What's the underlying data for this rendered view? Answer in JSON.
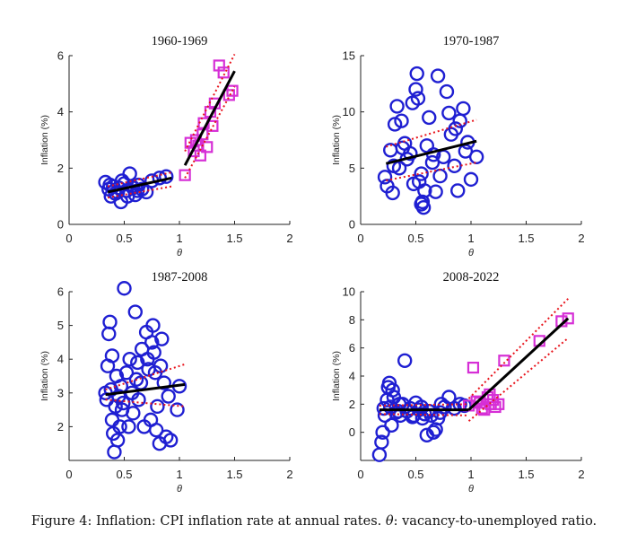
{
  "caption": {
    "prefix": "Figure 4: Inflation: CPI inflation rate at annual rates.",
    "theta": "θ",
    "suffix": ": vacancy-to-unemployed ratio."
  },
  "colors": {
    "circles": "#1f1fd2",
    "squares": "#d62fd6",
    "fit": "#000000",
    "band": "#e8141c"
  },
  "chart_data": [
    {
      "type": "scatter",
      "title": "1960-1969",
      "xlabel": "θ",
      "ylabel": "Inflation (%)",
      "xlim": [
        0,
        2
      ],
      "ylim": [
        0,
        6
      ],
      "xticks": [
        0,
        0.5,
        1,
        1.5,
        2
      ],
      "xtick_labels": [
        "0",
        "0.5",
        "1",
        "1.5",
        "2"
      ],
      "yticks": [
        0,
        2,
        4,
        6
      ],
      "ytick_labels": [
        "0",
        "2",
        "4",
        "6"
      ],
      "series": [
        {
          "marker": "circle",
          "x": [
            0.33,
            0.36,
            0.38,
            0.4,
            0.42,
            0.45,
            0.47,
            0.5,
            0.52,
            0.55,
            0.57,
            0.6,
            0.63,
            0.66,
            0.7,
            0.75,
            0.82,
            0.88,
            0.37,
            0.44,
            0.53,
            0.62,
            0.48,
            0.58
          ],
          "y": [
            1.5,
            1.25,
            1.0,
            1.35,
            1.1,
            1.3,
            0.8,
            1.45,
            1.2,
            1.8,
            1.35,
            1.05,
            1.4,
            1.25,
            1.15,
            1.55,
            1.65,
            1.7,
            1.4,
            1.15,
            1.0,
            1.2,
            1.55,
            1.3
          ]
        },
        {
          "marker": "square",
          "x": [
            1.05,
            1.1,
            1.13,
            1.15,
            1.17,
            1.19,
            1.22,
            1.25,
            1.28,
            1.32,
            1.36,
            1.4,
            1.45,
            1.48,
            1.21,
            1.3
          ],
          "y": [
            1.75,
            2.9,
            2.6,
            3.0,
            2.8,
            2.45,
            3.6,
            2.75,
            4.0,
            4.3,
            5.65,
            5.4,
            4.6,
            4.75,
            3.2,
            3.5
          ]
        }
      ],
      "fit_segments": [
        {
          "x": [
            0.35,
            0.93
          ],
          "y": [
            1.15,
            1.65
          ]
        },
        {
          "x": [
            1.05,
            1.5
          ],
          "y": [
            2.1,
            5.45
          ]
        }
      ],
      "band_segments": [
        {
          "x": [
            0.35,
            0.93
          ],
          "y_upper": [
            1.35,
            1.85
          ],
          "y_lower": [
            0.95,
            1.35
          ]
        },
        {
          "x": [
            1.05,
            1.5
          ],
          "y_upper": [
            2.6,
            6.05
          ],
          "y_lower": [
            1.65,
            4.9
          ]
        }
      ]
    },
    {
      "type": "scatter",
      "title": "1970-1987",
      "xlabel": "θ",
      "ylabel": "Inflation (%)",
      "xlim": [
        0,
        2
      ],
      "ylim": [
        0,
        15
      ],
      "xticks": [
        0,
        0.5,
        1,
        1.5,
        2
      ],
      "xtick_labels": [
        "0",
        "0.5",
        "1",
        "1.5",
        "2"
      ],
      "yticks": [
        0,
        5,
        10,
        15
      ],
      "ytick_labels": [
        "0",
        "5",
        "10",
        "15"
      ],
      "series": [
        {
          "marker": "circle",
          "x": [
            0.22,
            0.24,
            0.27,
            0.29,
            0.31,
            0.33,
            0.35,
            0.37,
            0.4,
            0.42,
            0.45,
            0.47,
            0.5,
            0.51,
            0.52,
            0.53,
            0.55,
            0.56,
            0.57,
            0.58,
            0.6,
            0.62,
            0.65,
            0.68,
            0.7,
            0.72,
            0.75,
            0.78,
            0.8,
            0.82,
            0.85,
            0.88,
            0.9,
            0.93,
            0.95,
            0.97,
            1.0,
            1.05,
            0.3,
            0.38,
            0.48,
            0.66,
            0.86,
            0.55
          ],
          "y": [
            4.2,
            3.4,
            6.6,
            2.8,
            8.9,
            10.5,
            5.0,
            9.2,
            7.2,
            5.8,
            6.3,
            10.8,
            12.0,
            13.4,
            11.2,
            3.8,
            4.5,
            2.0,
            1.5,
            3.0,
            7.0,
            9.5,
            5.5,
            2.9,
            13.2,
            4.3,
            6.0,
            11.8,
            9.9,
            8.0,
            5.2,
            3.0,
            9.2,
            10.3,
            6.5,
            7.3,
            4.0,
            6.0,
            5.2,
            6.8,
            3.6,
            6.2,
            8.5,
            1.8
          ]
        }
      ],
      "fit_segments": [
        {
          "x": [
            0.23,
            1.05
          ],
          "y": [
            5.4,
            7.4
          ]
        }
      ],
      "band_segments": [
        {
          "x": [
            0.23,
            1.05
          ],
          "y_upper": [
            6.9,
            9.3
          ],
          "y_lower": [
            3.9,
            5.5
          ]
        }
      ]
    },
    {
      "type": "scatter",
      "title": "1987-2008",
      "xlabel": "θ",
      "ylabel": "Inflation (%)",
      "xlim": [
        0,
        2
      ],
      "ylim": [
        1,
        6
      ],
      "xticks": [
        0,
        0.5,
        1,
        1.5,
        2
      ],
      "xtick_labels": [
        "0",
        "0.5",
        "1",
        "1.5",
        "2"
      ],
      "yticks": [
        2,
        3,
        4,
        5,
        6
      ],
      "ytick_labels": [
        "2",
        "3",
        "4",
        "5",
        "6"
      ],
      "series": [
        {
          "marker": "circle",
          "x": [
            0.33,
            0.35,
            0.36,
            0.37,
            0.38,
            0.39,
            0.4,
            0.41,
            0.42,
            0.43,
            0.44,
            0.45,
            0.46,
            0.47,
            0.48,
            0.5,
            0.52,
            0.54,
            0.55,
            0.57,
            0.58,
            0.6,
            0.62,
            0.63,
            0.65,
            0.66,
            0.68,
            0.7,
            0.72,
            0.74,
            0.75,
            0.76,
            0.77,
            0.78,
            0.8,
            0.82,
            0.84,
            0.86,
            0.88,
            0.9,
            0.92,
            0.98,
            1.0,
            0.34,
            0.39,
            0.49,
            0.61,
            0.71,
            0.79,
            0.83
          ],
          "y": [
            3.0,
            3.8,
            4.75,
            5.1,
            3.1,
            2.2,
            1.8,
            1.25,
            2.6,
            3.5,
            1.6,
            2.9,
            2.0,
            3.2,
            2.5,
            6.1,
            3.6,
            2.0,
            4.0,
            3.0,
            2.4,
            5.4,
            3.9,
            2.8,
            3.3,
            4.3,
            2.0,
            4.8,
            3.7,
            2.2,
            4.5,
            5.0,
            4.2,
            3.6,
            2.6,
            1.5,
            4.6,
            3.3,
            1.7,
            2.9,
            1.6,
            2.5,
            3.2,
            2.8,
            4.1,
            2.7,
            3.4,
            4.0,
            1.9,
            3.8
          ]
        }
      ],
      "fit_segments": [
        {
          "x": [
            0.33,
            1.05
          ],
          "y": [
            2.95,
            3.25
          ]
        }
      ],
      "band_segments": [
        {
          "x": [
            0.33,
            1.05
          ],
          "y_upper": [
            3.1,
            3.85
          ],
          "y_lower": [
            2.8,
            2.6
          ]
        }
      ]
    },
    {
      "type": "scatter",
      "title": "2008-2022",
      "xlabel": "θ",
      "ylabel": "Inflation (%)",
      "xlim": [
        0,
        2
      ],
      "ylim": [
        -2,
        10
      ],
      "xticks": [
        0,
        0.5,
        1,
        1.5,
        2
      ],
      "xtick_labels": [
        "0",
        "0.5",
        "1",
        "1.5",
        "2"
      ],
      "yticks": [
        0,
        2,
        4,
        6,
        8,
        10
      ],
      "ytick_labels": [
        "0",
        "2",
        "4",
        "6",
        "8",
        "10"
      ],
      "series": [
        {
          "marker": "circle",
          "x": [
            0.17,
            0.19,
            0.2,
            0.22,
            0.24,
            0.25,
            0.26,
            0.27,
            0.28,
            0.3,
            0.32,
            0.34,
            0.36,
            0.38,
            0.4,
            0.42,
            0.45,
            0.48,
            0.5,
            0.53,
            0.56,
            0.58,
            0.6,
            0.62,
            0.64,
            0.66,
            0.68,
            0.7,
            0.73,
            0.76,
            0.8,
            0.85,
            0.9,
            0.94,
            0.21,
            0.29,
            0.35,
            0.47,
            0.55,
            0.72
          ],
          "y": [
            -1.6,
            -0.7,
            0.0,
            1.2,
            2.3,
            3.2,
            3.5,
            1.8,
            0.5,
            2.5,
            1.4,
            1.5,
            1.2,
            2.0,
            5.1,
            1.5,
            1.7,
            1.2,
            2.1,
            1.6,
            1.0,
            1.3,
            -0.2,
            1.5,
            1.2,
            0.0,
            0.2,
            1.0,
            2.0,
            1.8,
            2.5,
            1.7,
            2.0,
            1.9,
            1.7,
            3.0,
            2.0,
            1.1,
            1.8,
            1.4
          ]
        },
        {
          "marker": "square",
          "x": [
            0.98,
            1.02,
            1.05,
            1.08,
            1.1,
            1.12,
            1.15,
            1.18,
            1.2,
            1.22,
            1.3,
            1.62,
            1.82,
            1.88,
            1.17,
            1.25
          ],
          "y": [
            1.9,
            4.6,
            2.2,
            2.1,
            1.7,
            1.6,
            2.5,
            2.0,
            2.3,
            1.8,
            5.1,
            6.5,
            7.9,
            8.1,
            2.7,
            2.0
          ]
        }
      ],
      "fit_segments": [
        {
          "x": [
            0.17,
            0.98
          ],
          "y": [
            1.6,
            1.6
          ]
        },
        {
          "x": [
            0.98,
            1.88
          ],
          "y": [
            1.6,
            8.1
          ]
        }
      ],
      "band_segments": [
        {
          "x": [
            0.17,
            0.98
          ],
          "y_upper": [
            1.9,
            2.0
          ],
          "y_lower": [
            1.3,
            1.2
          ]
        },
        {
          "x": [
            0.98,
            1.88
          ],
          "y_upper": [
            2.4,
            9.5
          ],
          "y_lower": [
            0.8,
            6.7
          ]
        }
      ]
    }
  ]
}
